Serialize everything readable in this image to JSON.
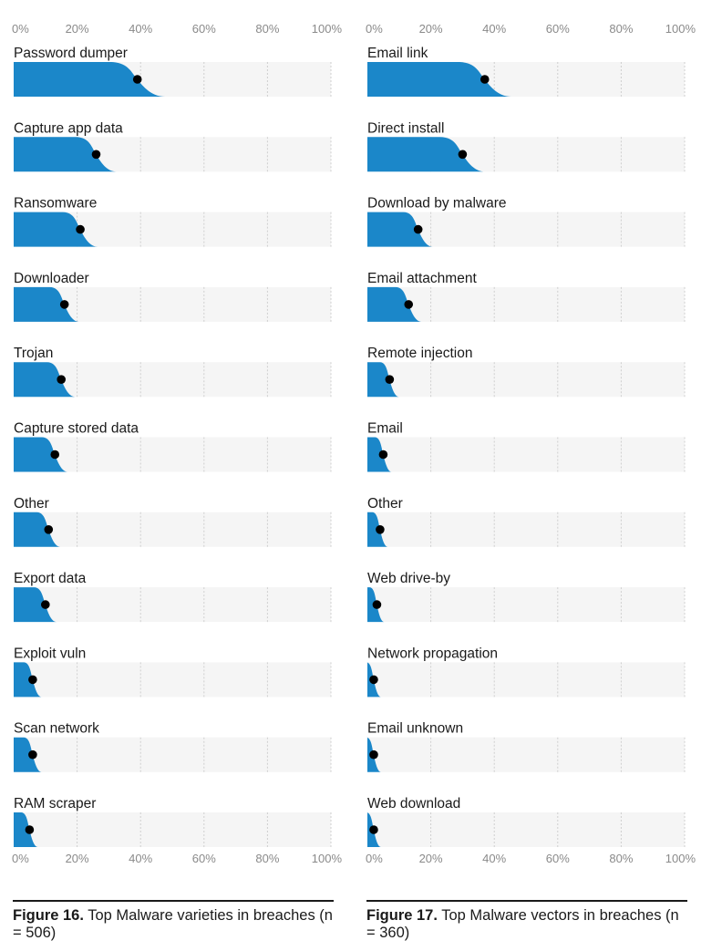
{
  "chart_data": [
    {
      "type": "bar",
      "figure_label": "Figure 16.",
      "title": "Top Malware varieties in breaches (n = 506)",
      "ticks": [
        "0%",
        "20%",
        "40%",
        "60%",
        "80%",
        "100%"
      ],
      "xlim": [
        0,
        100
      ],
      "categories": [
        "Password dumper",
        "Capture app data",
        "Ransomware",
        "Downloader",
        "Trojan",
        "Capture stored data",
        "Other",
        "Export data",
        "Exploit vuln",
        "Scan network",
        "RAM scraper"
      ],
      "values": [
        39,
        26,
        21,
        16,
        15,
        13,
        11,
        10,
        6,
        6,
        5
      ],
      "bar_color": "#1b87c9",
      "track_color": "#f5f5f5",
      "dot_color": "#000000"
    },
    {
      "type": "bar",
      "figure_label": "Figure 17.",
      "title": "Top Malware vectors in breaches (n = 360)",
      "ticks": [
        "0%",
        "20%",
        "40%",
        "60%",
        "80%",
        "100%"
      ],
      "xlim": [
        0,
        100
      ],
      "categories": [
        "Email link",
        "Direct install",
        "Download by malware",
        "Email attachment",
        "Remote injection",
        "Email",
        "Other",
        "Web drive-by",
        "Network propagation",
        "Email unknown",
        "Web download"
      ],
      "values": [
        37,
        30,
        16,
        13,
        7,
        5,
        4,
        3,
        2,
        2,
        2
      ],
      "bar_color": "#1b87c9",
      "track_color": "#f5f5f5",
      "dot_color": "#000000"
    }
  ]
}
